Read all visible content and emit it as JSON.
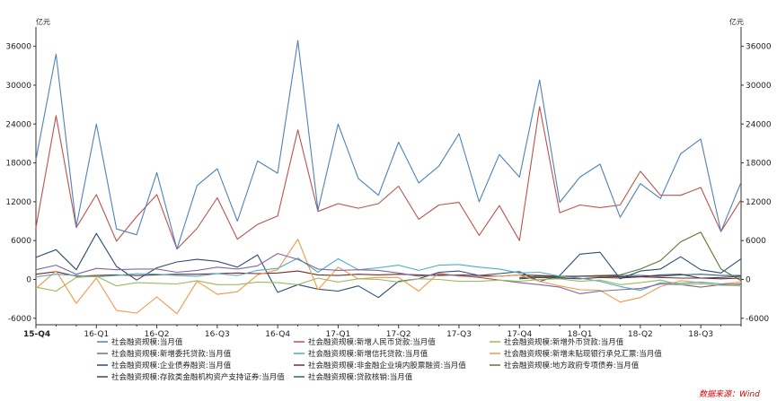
{
  "chart_data": {
    "type": "line",
    "unit_left": "亿元",
    "unit_right": "亿元",
    "ylim": [
      -7000,
      39000
    ],
    "yticks": [
      36000,
      30000,
      24000,
      18000,
      12000,
      6000,
      0,
      -6000
    ],
    "x_tick_labels": [
      "15-Q4",
      "16-Q1",
      "16-Q2",
      "16-Q3",
      "16-Q4",
      "17-Q1",
      "17-Q2",
      "17-Q3",
      "17-Q4",
      "18-Q1",
      "18-Q2",
      "18-Q3"
    ],
    "x_tick_positions": [
      0,
      3,
      6,
      9,
      12,
      15,
      18,
      21,
      24,
      27,
      30,
      33
    ],
    "x_max": 35,
    "source": "数据来源：Wind",
    "series": [
      {
        "name": "社会融资规模:当月值",
        "color": "#4f81bd",
        "values": [
          18500,
          34800,
          8200,
          24000,
          7800,
          6900,
          16500,
          4700,
          14500,
          17100,
          9000,
          18300,
          16400,
          36900,
          10700,
          24000,
          15600,
          13000,
          21200,
          14900,
          17500,
          22500,
          12000,
          19300,
          15800,
          30800,
          11900,
          15800,
          17800,
          9600,
          14800,
          12500,
          19400,
          21700,
          7400,
          15000
        ]
      },
      {
        "name": "社会融资规模:新增人民币贷款:当月值",
        "color": "#c0504d",
        "values": [
          8000,
          25300,
          8000,
          13100,
          5900,
          9700,
          13100,
          4700,
          7900,
          12600,
          6200,
          8500,
          9800,
          23100,
          10500,
          11700,
          11000,
          11700,
          14400,
          9300,
          11500,
          11900,
          6800,
          11400,
          6000,
          26700,
          10300,
          11500,
          11100,
          11500,
          16700,
          13000,
          13000,
          14200,
          7400,
          12300
        ]
      },
      {
        "name": "社会融资规模:新增外币贷款:当月值",
        "color": "#9bbb59",
        "values": [
          -1200,
          -1800,
          300,
          500,
          -1000,
          -500,
          -600,
          -700,
          -200,
          -800,
          -800,
          -400,
          -500,
          -800,
          200,
          -400,
          100,
          0,
          -400,
          100,
          0,
          -300,
          -300,
          -100,
          -300,
          0,
          100,
          -300,
          -100,
          -800,
          -500,
          -100,
          -800,
          -700,
          -900,
          -1000
        ]
      },
      {
        "name": "社会融资规模:新增委托贷款:当月值",
        "color": "#8064a2",
        "values": [
          1500,
          2200,
          800,
          1700,
          1500,
          1600,
          1600,
          1100,
          1400,
          1900,
          1600,
          2100,
          4000,
          3100,
          1600,
          1400,
          1500,
          1400,
          1000,
          500,
          800,
          600,
          300,
          -100,
          -500,
          -800,
          -1200,
          -2200,
          -1800,
          -1600,
          -1400,
          -700,
          -800,
          -1200,
          -800,
          -700
        ]
      },
      {
        "name": "社会融资规模:新增信托贷款:当月值",
        "color": "#4bacc6",
        "values": [
          400,
          800,
          600,
          400,
          600,
          900,
          800,
          600,
          500,
          900,
          600,
          1400,
          1700,
          3300,
          1100,
          3200,
          1500,
          1800,
          2200,
          1400,
          2200,
          2300,
          1900,
          1600,
          1000,
          1100,
          500,
          200,
          -300,
          -1100,
          -1700,
          -500,
          -600,
          -400,
          -700,
          -800
        ]
      },
      {
        "name": "社会融资规模:新增未贴现银行承兑汇票:当月值",
        "color": "#f79646",
        "values": [
          -1400,
          1300,
          -3700,
          200,
          -4800,
          -5200,
          -2700,
          -5300,
          -300,
          -2300,
          -1900,
          700,
          1500,
          6200,
          -1600,
          1900,
          100,
          300,
          300,
          -1800,
          1000,
          500,
          400,
          500,
          700,
          -300,
          -1000,
          -1600,
          -1700,
          -3500,
          -2800,
          -1100,
          -200,
          -500,
          -700,
          -400
        ]
      },
      {
        "name": "社会融资规模:企业债券融资:当月值",
        "color": "#2c4d75",
        "values": [
          3400,
          4600,
          1500,
          7100,
          2000,
          -100,
          1800,
          2700,
          3100,
          2800,
          1900,
          3800,
          -2000,
          -800,
          -1500,
          -1800,
          -1000,
          -2800,
          -300,
          100,
          1100,
          1300,
          600,
          900,
          1200,
          -300,
          600,
          3900,
          4200,
          100,
          1300,
          1600,
          3500,
          1500,
          1000,
          3200
        ]
      },
      {
        "name": "社会融资规模:非金融企业境内股票融资:当月值",
        "color": "#772c2a",
        "values": [
          800,
          1200,
          500,
          600,
          700,
          600,
          700,
          800,
          800,
          900,
          1000,
          900,
          1000,
          1300,
          700,
          600,
          800,
          700,
          800,
          700,
          600,
          700,
          600,
          500,
          700,
          600,
          500,
          500,
          500,
          400,
          400,
          300,
          200,
          200,
          100,
          200
        ]
      },
      {
        "name": "社会融资规模:地方政府专项债券:当月值",
        "color": "#5f7530",
        "values": [
          null,
          null,
          null,
          null,
          null,
          null,
          null,
          null,
          null,
          null,
          null,
          null,
          null,
          null,
          null,
          null,
          null,
          null,
          null,
          null,
          null,
          null,
          null,
          null,
          200,
          500,
          300,
          500,
          600,
          700,
          1600,
          2900,
          5800,
          7300,
          1600,
          -200
        ]
      },
      {
        "name": "社会融资规模:存款类金融机构资产支持证券:当月值",
        "color": "#4d3b62",
        "values": [
          null,
          null,
          null,
          null,
          null,
          null,
          null,
          null,
          null,
          null,
          null,
          null,
          null,
          null,
          null,
          null,
          null,
          null,
          null,
          null,
          null,
          null,
          null,
          null,
          100,
          300,
          200,
          100,
          300,
          200,
          400,
          700,
          800,
          200,
          300,
          500
        ]
      },
      {
        "name": "社会融资规模:贷款核销:当月值",
        "color": "#276a7c",
        "values": [
          null,
          null,
          null,
          null,
          null,
          null,
          null,
          null,
          null,
          null,
          null,
          null,
          null,
          null,
          null,
          null,
          null,
          null,
          null,
          null,
          null,
          null,
          null,
          null,
          300,
          500,
          400,
          500,
          500,
          600,
          600,
          500,
          700,
          800,
          600,
          600
        ]
      }
    ]
  }
}
